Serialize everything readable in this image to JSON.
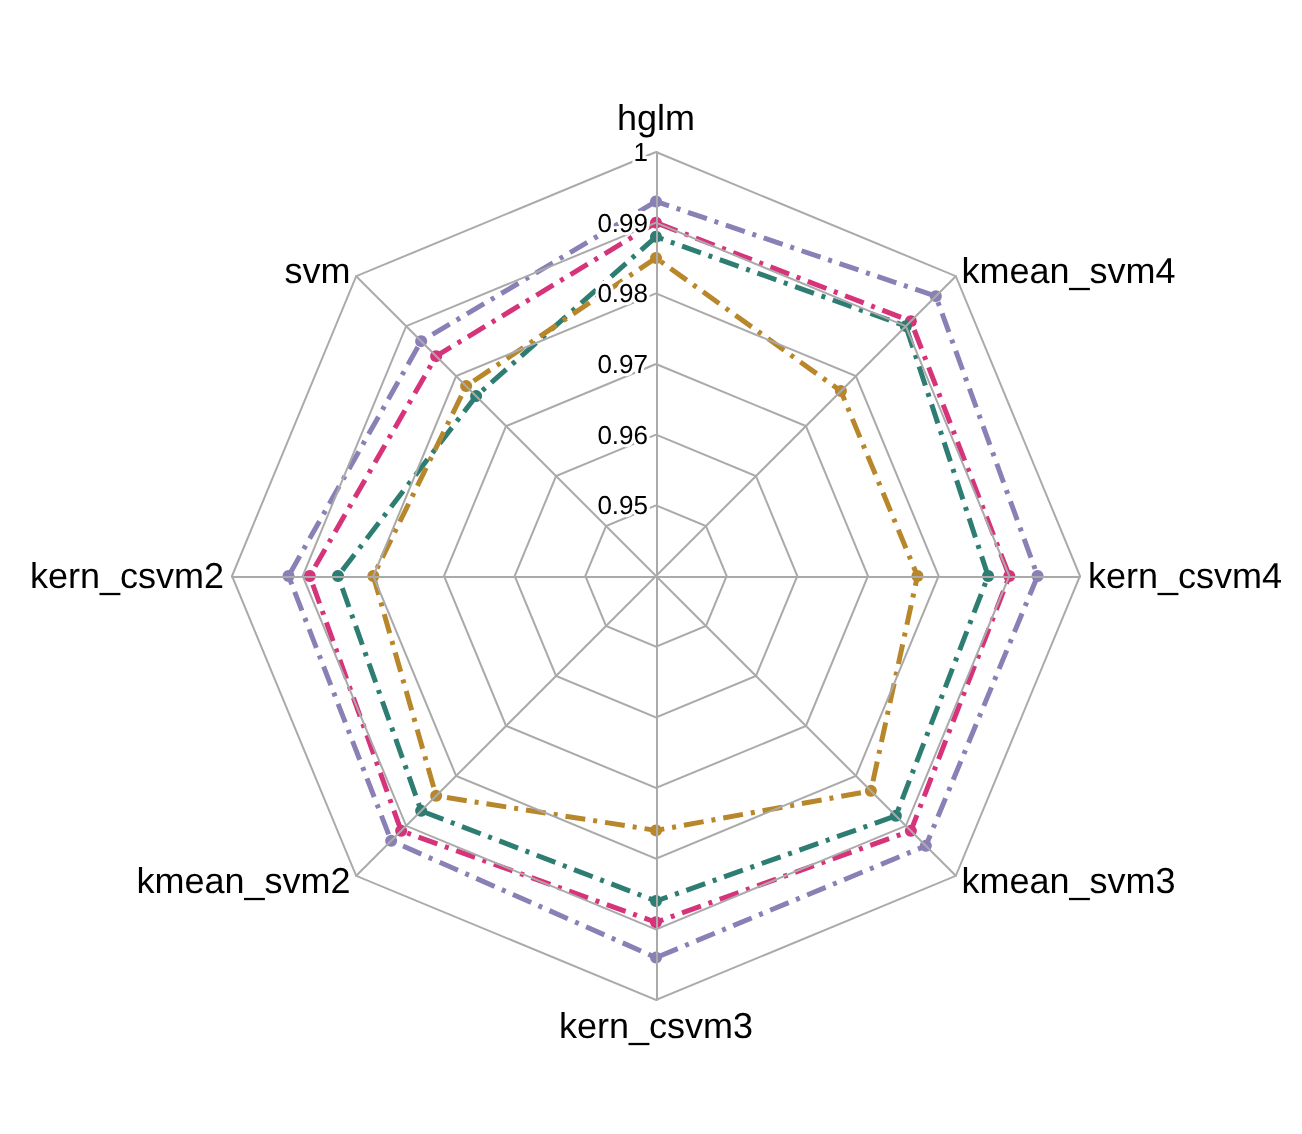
{
  "chart_data": {
    "type": "radar",
    "categories": [
      "hglm",
      "kmean_svm4",
      "kern_csvm4",
      "kmean_svm3",
      "kern_csvm3",
      "kmean_svm2",
      "kern_csvm2",
      "svm"
    ],
    "series": [
      {
        "color": "#8b80b6",
        "values": [
          0.993,
          0.996,
          0.994,
          0.994,
          0.994,
          0.993,
          0.992,
          0.987
        ]
      },
      {
        "color": "#d6337a",
        "values": [
          0.99,
          0.991,
          0.99,
          0.991,
          0.989,
          0.991,
          0.989,
          0.984
        ]
      },
      {
        "color": "#2e7d72",
        "values": [
          0.988,
          0.99,
          0.987,
          0.988,
          0.986,
          0.987,
          0.985,
          0.976
        ]
      },
      {
        "color": "#b8862b",
        "values": [
          0.985,
          0.977,
          0.977,
          0.983,
          0.976,
          0.984,
          0.98,
          0.978
        ]
      }
    ],
    "ylim": [
      0.94,
      1
    ],
    "yticks": [
      0.95,
      0.96,
      0.97,
      0.98,
      0.99,
      1
    ],
    "marker": "circle",
    "line_style": "dashed"
  }
}
